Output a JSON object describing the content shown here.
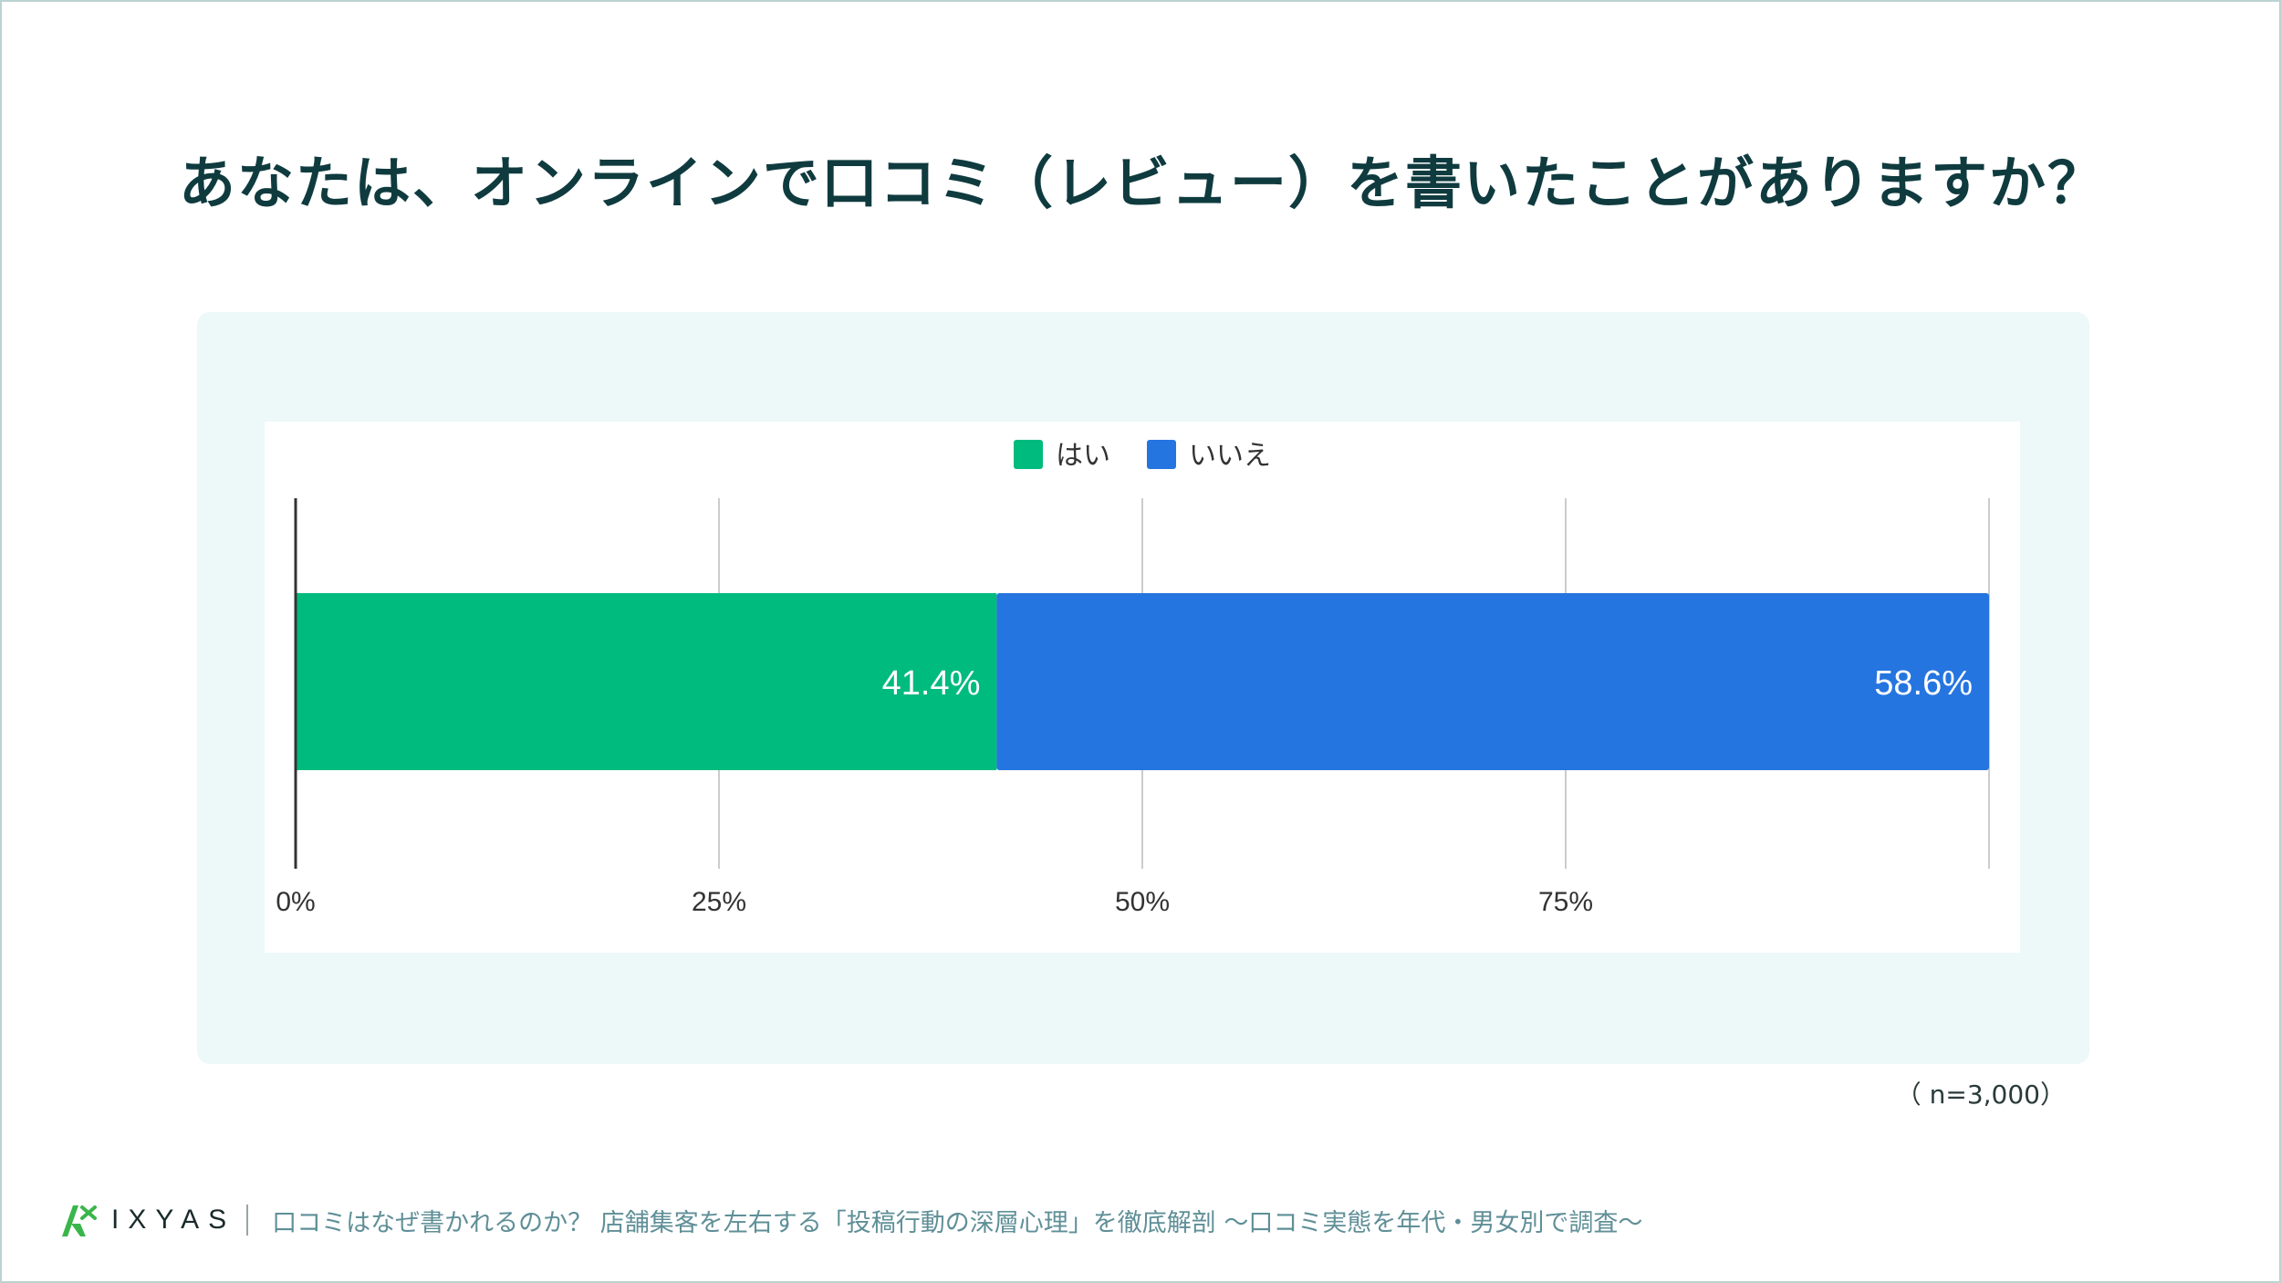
{
  "title": "あなたは、オンラインで口コミ（レビュー）を書いたことがありますか？",
  "sample_note": "（ n=3,000）",
  "footer": {
    "logo_text": "IXYAS",
    "subtitle": "口コミはなぜ書かれるのか？ 店舗集客を左右する「投稿行動の深層心理」を徹底解剖 〜口コミ実態を年代・男女別で調査〜"
  },
  "colors": {
    "yes": "#00bb7e",
    "no": "#2575e0",
    "logo": "#3ab54a"
  },
  "chart_data": {
    "type": "bar",
    "orientation": "horizontal",
    "stacked": true,
    "categories": [
      ""
    ],
    "series": [
      {
        "name": "はい",
        "values": [
          41.4
        ],
        "label": "41.4%",
        "color": "#00bb7e"
      },
      {
        "name": "いいえ",
        "values": [
          58.6
        ],
        "label": "58.6%",
        "color": "#2575e0"
      }
    ],
    "xlim": [
      0,
      100
    ],
    "ticks": [
      0,
      25,
      50,
      75
    ],
    "tick_labels": [
      "0%",
      "25%",
      "50%",
      "75%"
    ],
    "grid": true,
    "legend": "top-center"
  }
}
